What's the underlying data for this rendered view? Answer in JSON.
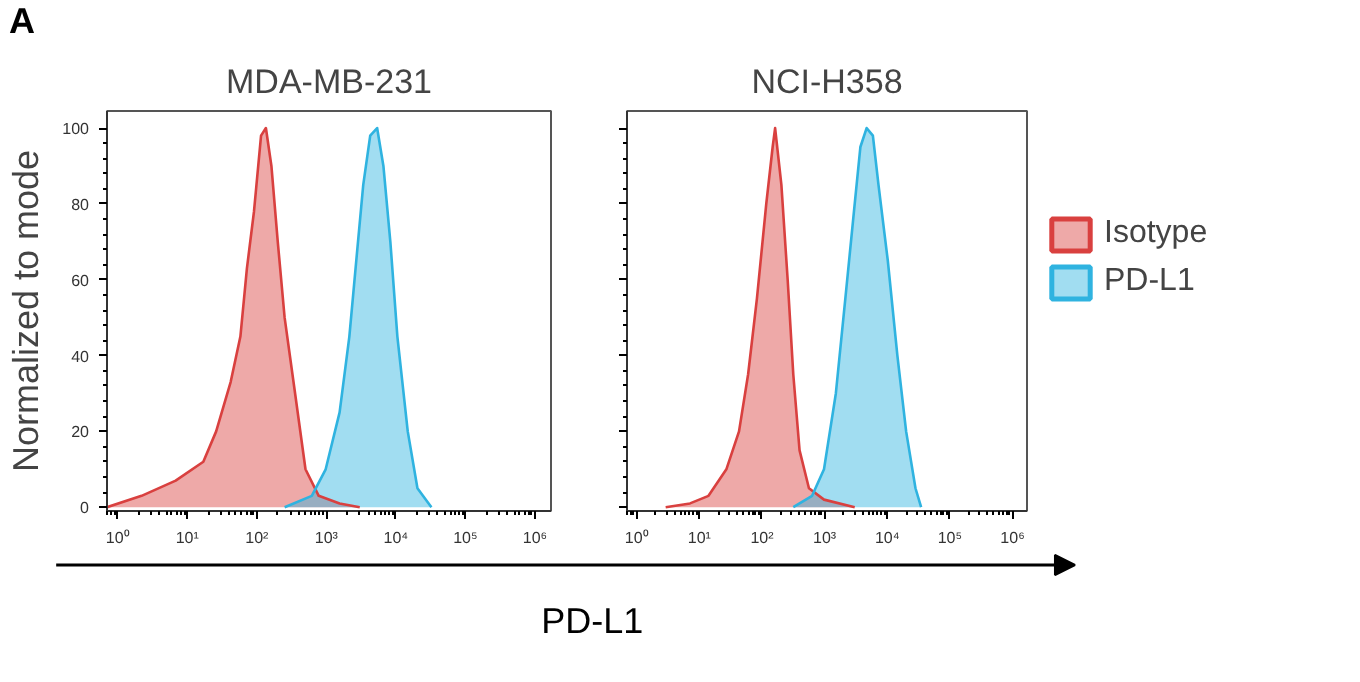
{
  "chart_data": [
    {
      "type": "area",
      "title": "MDA-MB-231",
      "ylabel": "Normalized to mode",
      "xlabel": "PD-L1",
      "annotations": [
        "A"
      ],
      "log": "x",
      "xlim": [
        0.7,
        1700000
      ],
      "ylim": [
        -1,
        104.5
      ],
      "xticks": [
        {
          "value": 1,
          "label": "10⁰"
        },
        {
          "value": 10,
          "label": "10¹"
        },
        {
          "value": 100,
          "label": "10²"
        },
        {
          "value": 1000,
          "label": "10³"
        },
        {
          "value": 10000,
          "label": "10⁴"
        },
        {
          "value": 100000,
          "label": "10⁵"
        },
        {
          "value": 1000000,
          "label": "10⁶"
        }
      ],
      "yticks": [
        0,
        20,
        40,
        60,
        80,
        100
      ],
      "grid": false,
      "series": [
        {
          "color": "#d9403f",
          "x": [
            0.7,
            2.2,
            6.8,
            17,
            26,
            42,
            58,
            72,
            91,
            115,
            135,
            162,
            200,
            251,
            355,
            501,
            776,
            1550,
            3020
          ],
          "values": [
            0,
            3,
            7,
            12,
            20,
            33,
            45,
            63,
            78,
            98,
            100,
            90,
            70,
            50,
            30,
            10,
            3,
            1,
            0
          ]
        },
        {
          "color": "#2fb3e0",
          "x": [
            251,
            617,
            977,
            1550,
            2140,
            2690,
            3390,
            4270,
            5370,
            6610,
            8320,
            10500,
            14800,
            20400,
            32400
          ],
          "values": [
            0,
            3,
            10,
            25,
            45,
            65,
            85,
            98,
            100,
            90,
            70,
            45,
            20,
            5,
            0
          ]
        }
      ]
    },
    {
      "type": "area",
      "title": "NCI-H358",
      "log": "x",
      "xlim": [
        0.7,
        1700000
      ],
      "ylim": [
        -1,
        104.5
      ],
      "xticks": [
        {
          "value": 1,
          "label": "10⁰"
        },
        {
          "value": 10,
          "label": "10¹"
        },
        {
          "value": 100,
          "label": "10²"
        },
        {
          "value": 1000,
          "label": "10³"
        },
        {
          "value": 10000,
          "label": "10⁴"
        },
        {
          "value": 100000,
          "label": "10⁵"
        },
        {
          "value": 1000000,
          "label": "10⁶"
        }
      ],
      "yticks": [
        {
          "value": 0,
          "label": null
        },
        {
          "value": 20,
          "label": null
        },
        {
          "value": 40,
          "label": null
        },
        {
          "value": 60,
          "label": null
        },
        {
          "value": 80,
          "label": null
        },
        {
          "value": 100,
          "label": null
        }
      ],
      "tick_labels": "x",
      "grid": false,
      "legend": "right",
      "series": [
        {
          "name": "Isotype",
          "color": "#d9403f",
          "x": [
            2.9,
            7.1,
            14,
            27,
            43,
            60,
            83,
            117,
            148,
            162,
            204,
            257,
            316,
            398,
            562,
            977,
            3020
          ],
          "values": [
            0,
            1,
            3,
            10,
            20,
            35,
            55,
            80,
            95,
            100,
            85,
            60,
            35,
            15,
            5,
            2,
            0
          ]
        },
        {
          "name": "PD-L1",
          "color": "#2fb3e0",
          "x": [
            316,
            631,
            977,
            1510,
            2140,
            3020,
            3720,
            4680,
            5890,
            7240,
            10200,
            14500,
            20000,
            28200,
            34700
          ],
          "values": [
            0,
            3,
            10,
            30,
            55,
            80,
            95,
            100,
            98,
            85,
            65,
            40,
            20,
            5,
            0
          ]
        }
      ]
    }
  ]
}
